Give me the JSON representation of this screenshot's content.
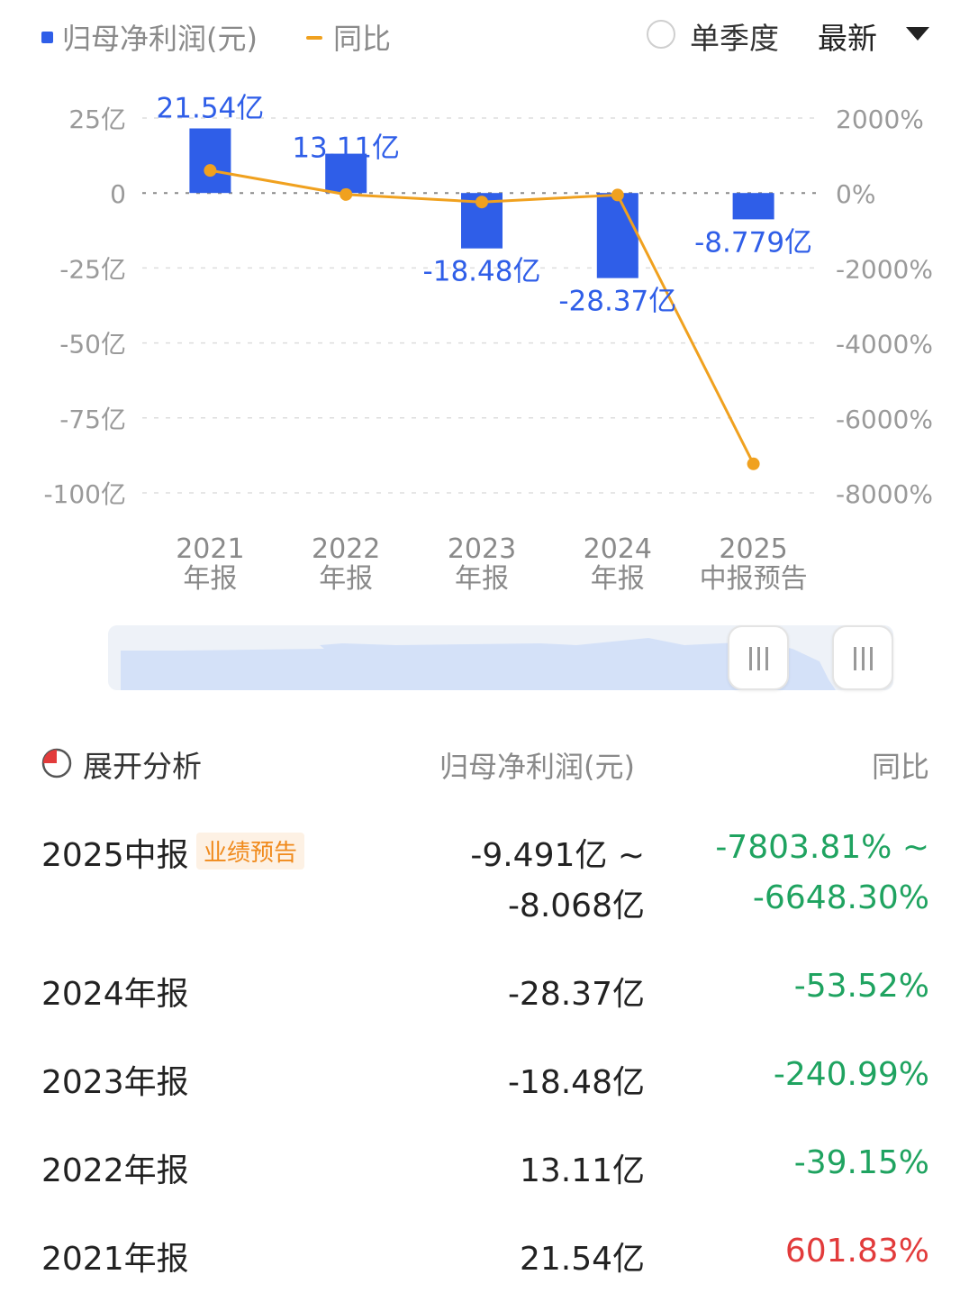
{
  "legend": {
    "bar_label": "归母净利润(元)",
    "line_label": "同比",
    "bar_color": "#2f5ee8",
    "line_color": "#f0a11f"
  },
  "controls": {
    "single_quarter_label": "单季度",
    "single_quarter_checked": false,
    "sort_label": "最新"
  },
  "chart_data": {
    "type": "bar",
    "categories": [
      [
        "2021",
        "年报"
      ],
      [
        "2022",
        "年报"
      ],
      [
        "2023",
        "年报"
      ],
      [
        "2024",
        "年报"
      ],
      [
        "2025",
        "中报预告"
      ]
    ],
    "series": [
      {
        "name": "归母净利润(元)",
        "type": "bar",
        "axis": "left",
        "values": [
          21.54,
          13.11,
          -18.48,
          -28.37,
          -8.779
        ],
        "labels": [
          "21.54亿",
          "13.11亿",
          "-18.48亿",
          "-28.37亿",
          "-8.779亿"
        ]
      },
      {
        "name": "同比",
        "type": "line",
        "axis": "right",
        "values": [
          601.83,
          -39.15,
          -240.99,
          -53.52,
          -7226.06
        ]
      }
    ],
    "left_axis": {
      "ylim": [
        -100,
        25
      ],
      "ticks": [
        25,
        0,
        -25,
        -50,
        -75,
        -100
      ],
      "tick_labels": [
        "25亿",
        "0",
        "-25亿",
        "-50亿",
        "-75亿",
        "-100亿"
      ]
    },
    "right_axis": {
      "ylim": [
        -8000,
        2000
      ],
      "ticks": [
        2000,
        0,
        -2000,
        -4000,
        -6000,
        -8000
      ],
      "tick_labels": [
        "2000%",
        "0%",
        "-2000%",
        "-4000%",
        "-6000%",
        "-8000%"
      ]
    },
    "grid": true,
    "grid_style": "dashed"
  },
  "analysis": {
    "title": "展开分析",
    "col_value": "归母净利润(元)",
    "col_yoy": "同比",
    "rows": [
      {
        "label": "2025中报",
        "tag": "业绩预告",
        "value_line1": "-9.491亿 ~",
        "value_line2": "-8.068亿",
        "yoy_line1": "-7803.81% ~",
        "yoy_line2": "-6648.30%",
        "yoy_color": "green"
      },
      {
        "label": "2024年报",
        "value": "-28.37亿",
        "yoy": "-53.52%",
        "yoy_color": "green"
      },
      {
        "label": "2023年报",
        "value": "-18.48亿",
        "yoy": "-240.99%",
        "yoy_color": "green"
      },
      {
        "label": "2022年报",
        "value": "13.11亿",
        "yoy": "-39.15%",
        "yoy_color": "green"
      },
      {
        "label": "2021年报",
        "value": "21.54亿",
        "yoy": "601.83%",
        "yoy_color": "red"
      }
    ]
  }
}
